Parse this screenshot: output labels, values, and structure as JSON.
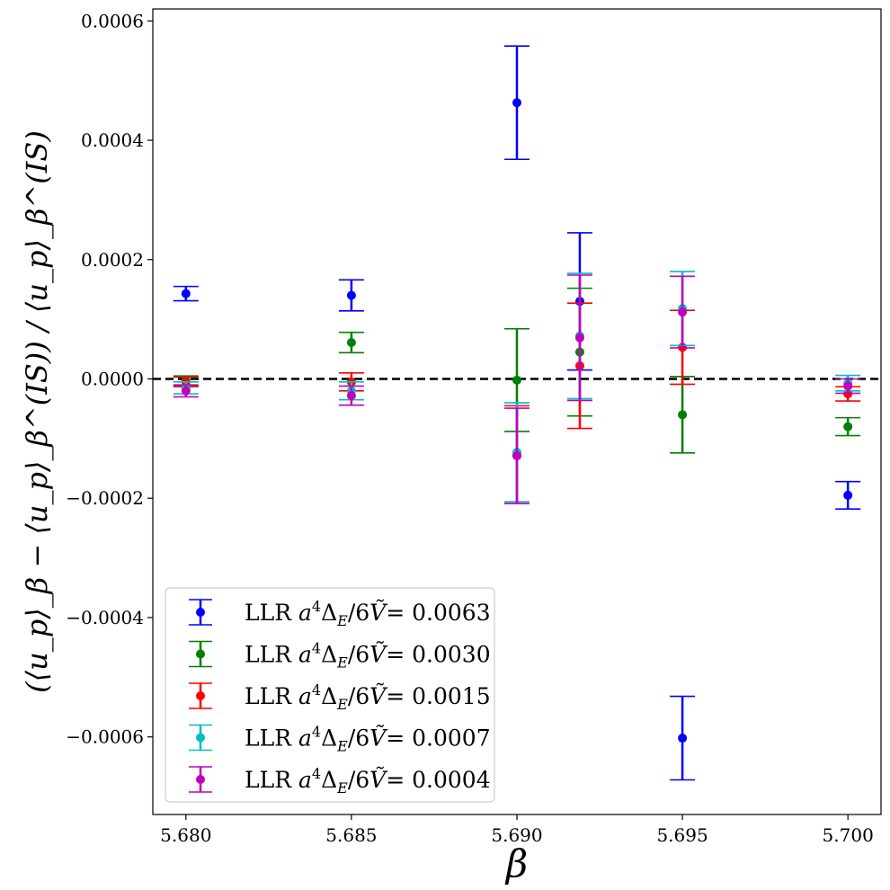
{
  "chart_data": {
    "type": "scatter",
    "title": "",
    "xlabel": "β",
    "ylabel": "(⟨u_p⟩_β − ⟨u_p⟩_β^(IS)) / ⟨u_p⟩_β^(IS)",
    "xlim": [
      5.679,
      5.701
    ],
    "ylim": [
      -0.00073,
      0.00062
    ],
    "xticks": [
      5.68,
      5.685,
      5.69,
      5.695,
      5.7
    ],
    "xtick_labels": [
      "5.680",
      "5.685",
      "5.690",
      "5.695",
      "5.700"
    ],
    "yticks": [
      -0.0006,
      -0.0004,
      -0.0002,
      0.0,
      0.0002,
      0.0004,
      0.0006
    ],
    "ytick_labels": [
      "−0.0006",
      "−0.0004",
      "−0.0002",
      "0.0000",
      "0.0002",
      "0.0004",
      "0.0006"
    ],
    "reference_line": {
      "y": 0,
      "style": "dashed",
      "color": "#000000"
    },
    "legend_position": "lower-left",
    "series": [
      {
        "name": "LLR a⁴Δ_E/6Ṽ= 0.0063",
        "legend_prefix": "LLR",
        "legend_value": "0.0063",
        "color": "#0000ff",
        "x": [
          5.68,
          5.685,
          5.69,
          5.6919,
          5.695,
          5.7
        ],
        "y": [
          0.000143,
          0.00014,
          0.000463,
          0.00013,
          -0.000602,
          -0.000195
        ],
        "err": [
          1.2e-05,
          2.6e-05,
          9.5e-05,
          0.000115,
          7e-05,
          2.3e-05
        ]
      },
      {
        "name": "LLR a⁴Δ_E/6Ṽ= 0.0030",
        "legend_prefix": "LLR",
        "legend_value": "0.0030",
        "color": "#008000",
        "x": [
          5.68,
          5.685,
          5.69,
          5.6919,
          5.695,
          5.7
        ],
        "y": [
          -3e-06,
          6.1e-05,
          -2e-06,
          4.5e-05,
          -6e-05,
          -8e-05
        ],
        "err": [
          8e-06,
          1.7e-05,
          8.6e-05,
          0.000107,
          6.4e-05,
          1.5e-05
        ]
      },
      {
        "name": "LLR a⁴Δ_E/6Ṽ= 0.0015",
        "legend_prefix": "LLR",
        "legend_value": "0.0015",
        "color": "#ff0000",
        "x": [
          5.68,
          5.685,
          5.69,
          5.6919,
          5.695,
          5.7
        ],
        "y": [
          -5e-06,
          -5e-06,
          -0.000127,
          2.2e-05,
          5.3e-05,
          -2.5e-05
        ],
        "err": [
          8e-06,
          1.5e-05,
          8.2e-05,
          0.000105,
          6.2e-05,
          1.2e-05
        ]
      },
      {
        "name": "LLR a⁴Δ_E/6Ṽ= 0.0007",
        "legend_prefix": "LLR",
        "legend_value": "0.0007",
        "color": "#00bfbf",
        "x": [
          5.68,
          5.685,
          5.69,
          5.6919,
          5.695,
          5.7
        ],
        "y": [
          -1.5e-05,
          -2e-05,
          -0.000123,
          7.2e-05,
          0.000118,
          -7e-06
        ],
        "err": [
          1e-05,
          1.5e-05,
          8.3e-05,
          0.000105,
          6.2e-05,
          1.3e-05
        ]
      },
      {
        "name": "LLR a⁴Δ_E/6Ṽ= 0.0004",
        "legend_prefix": "LLR",
        "legend_value": "0.0004",
        "color": "#bf00bf",
        "x": [
          5.68,
          5.685,
          5.69,
          5.6919,
          5.695,
          5.7
        ],
        "y": [
          -2e-05,
          -2.8e-05,
          -0.000129,
          6.9e-05,
          0.000112,
          -1.2e-05
        ],
        "err": [
          1e-05,
          1.6e-05,
          8e-05,
          0.000105,
          6e-05,
          1.2e-05
        ]
      }
    ]
  }
}
